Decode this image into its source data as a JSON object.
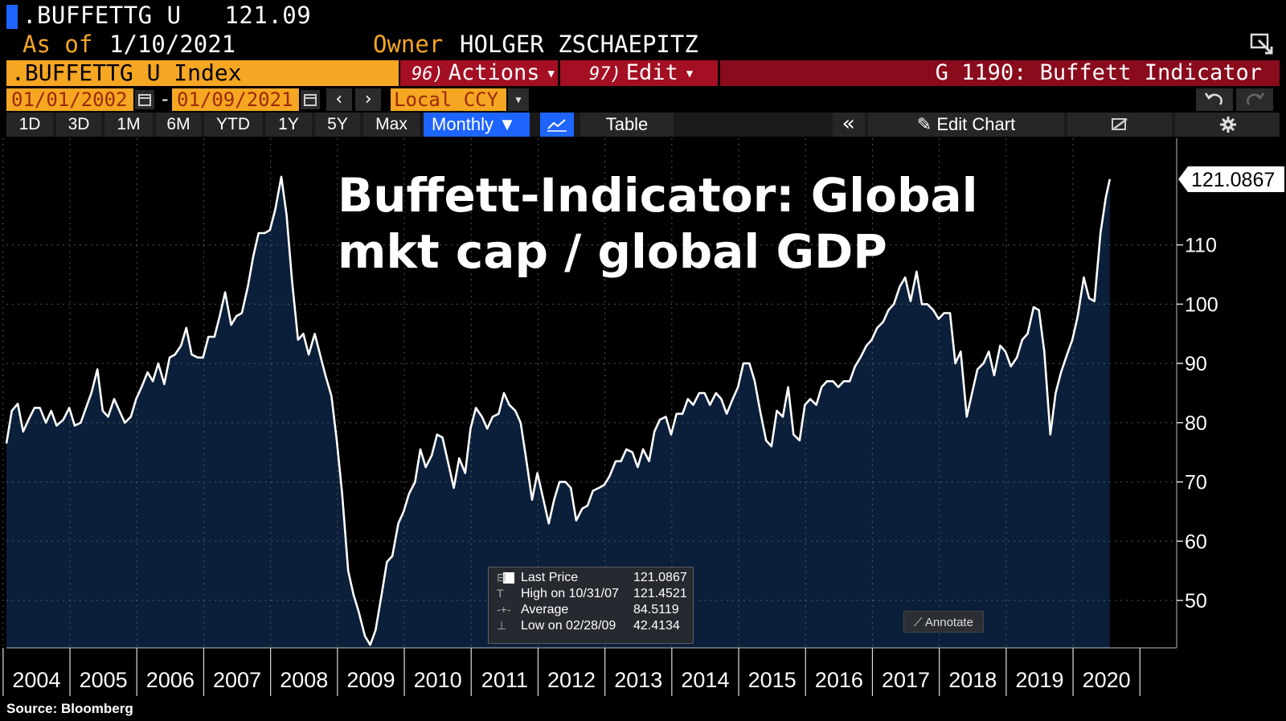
{
  "header": {
    "ticker": ".BUFFETTG U",
    "last_value": "121.09",
    "asof_label": "As of",
    "asof_date": "1/10/2021",
    "owner_label": "Owner",
    "owner_name": "HOLGER ZSCHAEPITZ"
  },
  "command_bar": {
    "security": ".BUFFETTG U Index",
    "actions_fn": "96)",
    "actions_label": "Actions",
    "edit_fn": "97)",
    "edit_label": "Edit",
    "screen_title": "G 1190: Buffett Indicator"
  },
  "date_row": {
    "start_date": "01/01/2002",
    "end_date": "01/09/2021",
    "separator": "-",
    "currency": "Local CCY"
  },
  "range_buttons": [
    "1D",
    "3D",
    "1M",
    "6M",
    "YTD",
    "1Y",
    "5Y",
    "Max"
  ],
  "periodicity": "Monthly",
  "table_label": "Table",
  "edit_chart_label": "Edit Chart",
  "annotate_label": "Annotate",
  "source": "Source:  Bloomberg",
  "legend": {
    "rows": [
      {
        "label": "Last Price",
        "value": "121.0867"
      },
      {
        "label": "High on 10/31/07",
        "value": "121.4521"
      },
      {
        "label": "Average",
        "value": "84.5119"
      },
      {
        "label": "Low on 02/28/09",
        "value": "42.4134"
      }
    ]
  },
  "chart_data": {
    "type": "area",
    "title": "Buffett-Indicator: Global mkt cap / global GDP",
    "title_lines": [
      "Buffett-Indicator: Global",
      "mkt cap / global GDP"
    ],
    "last_value_label": "121.0867",
    "series_color": "#ffffff",
    "fill_color": "#0b1f3a",
    "ylim": [
      42,
      128
    ],
    "y_ticks": [
      50,
      60,
      70,
      80,
      90,
      100,
      110
    ],
    "x_range": [
      2003.55,
      2021.05
    ],
    "x_tick_labels": [
      "2004",
      "2005",
      "2006",
      "2007",
      "2008",
      "2009",
      "2010",
      "2011",
      "2012",
      "2013",
      "2014",
      "2015",
      "2016",
      "2017",
      "2018",
      "2019",
      "2020"
    ],
    "grid": true,
    "series": [
      {
        "name": "Last Price",
        "points": [
          [
            2003.55,
            76.5
          ],
          [
            2003.63,
            82
          ],
          [
            2003.72,
            83.2
          ],
          [
            2003.8,
            78.5
          ],
          [
            2003.88,
            80.5
          ],
          [
            2003.97,
            82.5
          ],
          [
            2004.05,
            82.5
          ],
          [
            2004.14,
            80
          ],
          [
            2004.22,
            82
          ],
          [
            2004.3,
            79.5
          ],
          [
            2004.4,
            80.5
          ],
          [
            2004.49,
            82.5
          ],
          [
            2004.57,
            79.5
          ],
          [
            2004.66,
            80
          ],
          [
            2004.74,
            82.5
          ],
          [
            2004.82,
            85
          ],
          [
            2004.91,
            89
          ],
          [
            2004.99,
            82
          ],
          [
            2005.07,
            81
          ],
          [
            2005.16,
            84
          ],
          [
            2005.24,
            82
          ],
          [
            2005.32,
            80
          ],
          [
            2005.41,
            81
          ],
          [
            2005.49,
            84
          ],
          [
            2005.57,
            86
          ],
          [
            2005.66,
            88.5
          ],
          [
            2005.74,
            87
          ],
          [
            2005.82,
            90
          ],
          [
            2005.91,
            86.5
          ],
          [
            2005.99,
            91
          ],
          [
            2006.07,
            91.5
          ],
          [
            2006.16,
            93
          ],
          [
            2006.24,
            96
          ],
          [
            2006.32,
            91.5
          ],
          [
            2006.41,
            91
          ],
          [
            2006.49,
            91
          ],
          [
            2006.57,
            94.5
          ],
          [
            2006.66,
            94.5
          ],
          [
            2006.74,
            98
          ],
          [
            2006.82,
            102
          ],
          [
            2006.91,
            96.5
          ],
          [
            2006.99,
            98
          ],
          [
            2007.07,
            98.5
          ],
          [
            2007.16,
            103
          ],
          [
            2007.24,
            108
          ],
          [
            2007.32,
            112
          ],
          [
            2007.41,
            112
          ],
          [
            2007.49,
            112.5
          ],
          [
            2007.57,
            116
          ],
          [
            2007.66,
            121.5
          ],
          [
            2007.74,
            115
          ],
          [
            2007.82,
            104
          ],
          [
            2007.91,
            94
          ],
          [
            2007.99,
            95
          ],
          [
            2008.07,
            91.5
          ],
          [
            2008.16,
            95
          ],
          [
            2008.24,
            91.5
          ],
          [
            2008.32,
            88
          ],
          [
            2008.41,
            84.5
          ],
          [
            2008.49,
            77
          ],
          [
            2008.57,
            68
          ],
          [
            2008.66,
            55
          ],
          [
            2008.74,
            51
          ],
          [
            2008.82,
            48
          ],
          [
            2008.91,
            44
          ],
          [
            2008.99,
            42.5
          ],
          [
            2009.07,
            45
          ],
          [
            2009.16,
            51
          ],
          [
            2009.24,
            56.5
          ],
          [
            2009.32,
            57.5
          ],
          [
            2009.41,
            63
          ],
          [
            2009.49,
            65
          ],
          [
            2009.57,
            68
          ],
          [
            2009.66,
            70
          ],
          [
            2009.74,
            75.5
          ],
          [
            2009.82,
            72.5
          ],
          [
            2009.91,
            74.5
          ],
          [
            2009.99,
            78
          ],
          [
            2010.07,
            77.5
          ],
          [
            2010.16,
            73
          ],
          [
            2010.24,
            69
          ],
          [
            2010.32,
            74
          ],
          [
            2010.41,
            71.5
          ],
          [
            2010.49,
            79
          ],
          [
            2010.57,
            82.5
          ],
          [
            2010.66,
            81
          ],
          [
            2010.74,
            79
          ],
          [
            2010.82,
            81
          ],
          [
            2010.91,
            81.5
          ],
          [
            2010.99,
            85
          ],
          [
            2011.07,
            83
          ],
          [
            2011.16,
            82
          ],
          [
            2011.24,
            80
          ],
          [
            2011.32,
            74
          ],
          [
            2011.41,
            67
          ],
          [
            2011.49,
            71.5
          ],
          [
            2011.57,
            67.5
          ],
          [
            2011.66,
            63
          ],
          [
            2011.74,
            67
          ],
          [
            2011.82,
            70
          ],
          [
            2011.91,
            70
          ],
          [
            2011.99,
            69
          ],
          [
            2012.07,
            63.5
          ],
          [
            2012.16,
            65.5
          ],
          [
            2012.24,
            66
          ],
          [
            2012.32,
            68.5
          ],
          [
            2012.41,
            69
          ],
          [
            2012.49,
            69.5
          ],
          [
            2012.57,
            71
          ],
          [
            2012.66,
            73.5
          ],
          [
            2012.74,
            73.5
          ],
          [
            2012.82,
            75.5
          ],
          [
            2012.91,
            75
          ],
          [
            2012.99,
            72.5
          ],
          [
            2013.07,
            75.5
          ],
          [
            2013.16,
            73.5
          ],
          [
            2013.24,
            78.5
          ],
          [
            2013.32,
            80.5
          ],
          [
            2013.41,
            81
          ],
          [
            2013.49,
            78
          ],
          [
            2013.57,
            81.5
          ],
          [
            2013.66,
            81.5
          ],
          [
            2013.74,
            84
          ],
          [
            2013.82,
            83
          ],
          [
            2013.91,
            85
          ],
          [
            2013.99,
            85
          ],
          [
            2014.07,
            83
          ],
          [
            2014.16,
            85
          ],
          [
            2014.24,
            84
          ],
          [
            2014.32,
            81.5
          ],
          [
            2014.41,
            84
          ],
          [
            2014.49,
            86
          ],
          [
            2014.57,
            90
          ],
          [
            2014.66,
            90
          ],
          [
            2014.74,
            87
          ],
          [
            2014.82,
            82
          ],
          [
            2014.91,
            77
          ],
          [
            2014.99,
            76
          ],
          [
            2015.07,
            82
          ],
          [
            2015.16,
            81
          ],
          [
            2015.24,
            86
          ],
          [
            2015.32,
            78
          ],
          [
            2015.41,
            77
          ],
          [
            2015.49,
            83
          ],
          [
            2015.57,
            84
          ],
          [
            2015.66,
            83
          ],
          [
            2015.74,
            86
          ],
          [
            2015.82,
            87
          ],
          [
            2015.91,
            87
          ],
          [
            2015.99,
            86
          ],
          [
            2016.07,
            87
          ],
          [
            2016.16,
            87
          ],
          [
            2016.24,
            89.5
          ],
          [
            2016.32,
            91
          ],
          [
            2016.41,
            93
          ],
          [
            2016.49,
            94
          ],
          [
            2016.57,
            96
          ],
          [
            2016.66,
            97
          ],
          [
            2016.74,
            99
          ],
          [
            2016.82,
            100
          ],
          [
            2016.91,
            103
          ],
          [
            2016.99,
            104.5
          ],
          [
            2017.07,
            100.5
          ],
          [
            2017.16,
            105.5
          ],
          [
            2017.24,
            100
          ],
          [
            2017.32,
            100
          ],
          [
            2017.41,
            99
          ],
          [
            2017.49,
            97.5
          ],
          [
            2017.57,
            98.5
          ],
          [
            2017.66,
            98.5
          ],
          [
            2017.74,
            90
          ],
          [
            2017.82,
            92
          ],
          [
            2017.91,
            81
          ],
          [
            2017.99,
            85
          ],
          [
            2018.07,
            89
          ],
          [
            2018.16,
            90
          ],
          [
            2018.24,
            92
          ],
          [
            2018.32,
            88
          ],
          [
            2018.41,
            93
          ],
          [
            2018.49,
            92
          ],
          [
            2018.57,
            89.5
          ],
          [
            2018.66,
            91
          ],
          [
            2018.74,
            94
          ],
          [
            2018.82,
            95
          ],
          [
            2018.91,
            99.5
          ],
          [
            2018.99,
            99
          ],
          [
            2019.07,
            92
          ],
          [
            2019.16,
            78
          ],
          [
            2019.24,
            85
          ],
          [
            2019.32,
            88.5
          ],
          [
            2019.41,
            91.5
          ],
          [
            2019.49,
            94
          ],
          [
            2019.57,
            98
          ],
          [
            2019.66,
            104.5
          ],
          [
            2019.74,
            101
          ],
          [
            2019.82,
            100.5
          ],
          [
            2019.91,
            112
          ],
          [
            2019.99,
            118
          ],
          [
            2020.05,
            121.09
          ]
        ]
      }
    ]
  }
}
